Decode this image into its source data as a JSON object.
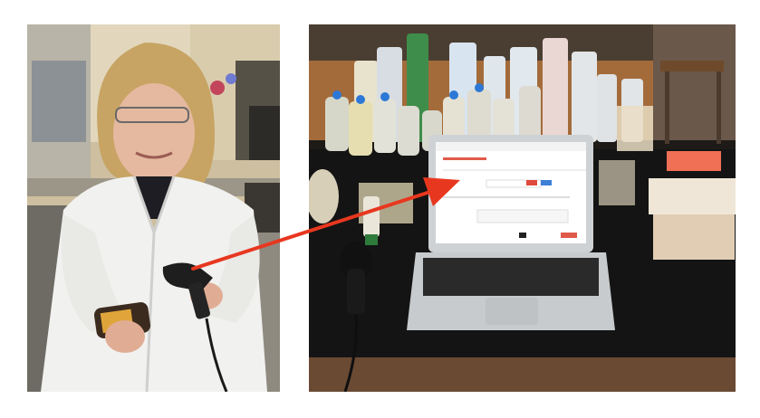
{
  "image": {
    "panels": [
      {
        "role": "person-scanning-bottle"
      },
      {
        "role": "lab-bench-with-laptop"
      }
    ],
    "arrow_color": "#e8371f"
  }
}
